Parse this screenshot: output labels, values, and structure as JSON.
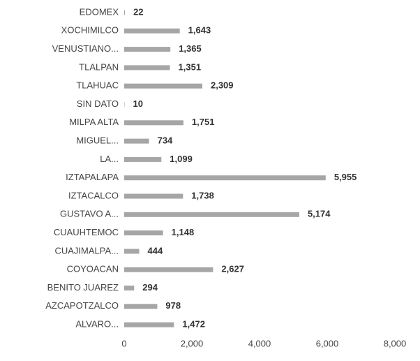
{
  "chart_data": {
    "type": "bar",
    "orientation": "horizontal",
    "categories": [
      "EDOMEX",
      "XOCHIMILCO",
      "VENUSTIANO...",
      "TLALPAN",
      "TLAHUAC",
      "SIN DATO",
      "MILPA ALTA",
      "MIGUEL...",
      "LA...",
      "IZTAPALAPA",
      "IZTACALCO",
      "GUSTAVO A...",
      "CUAUHTEMOC",
      "CUAJIMALPA...",
      "COYOACAN",
      "BENITO JUAREZ",
      "AZCAPOTZALCO",
      "ALVARO..."
    ],
    "values": [
      22,
      1643,
      1365,
      1351,
      2309,
      10,
      1751,
      734,
      1099,
      5955,
      1738,
      5174,
      1148,
      444,
      2627,
      294,
      978,
      1472
    ],
    "value_labels": [
      "22",
      "1,643",
      "1,365",
      "1,351",
      "2,309",
      "10",
      "1,751",
      "734",
      "1,099",
      "5,955",
      "1,738",
      "5,174",
      "1,148",
      "444",
      "2,627",
      "294",
      "978",
      "1,472"
    ],
    "color": "#a6a6a6",
    "xlim": [
      0,
      8000
    ],
    "xticks": [
      0,
      {
        "value": 2000,
        "label": "2,000"
      },
      {
        "value": 4000,
        "label": "4,000"
      },
      {
        "value": 6000,
        "label": "6,000"
      },
      {
        "value": 8000,
        "label": "8,000"
      }
    ],
    "grid": false
  }
}
